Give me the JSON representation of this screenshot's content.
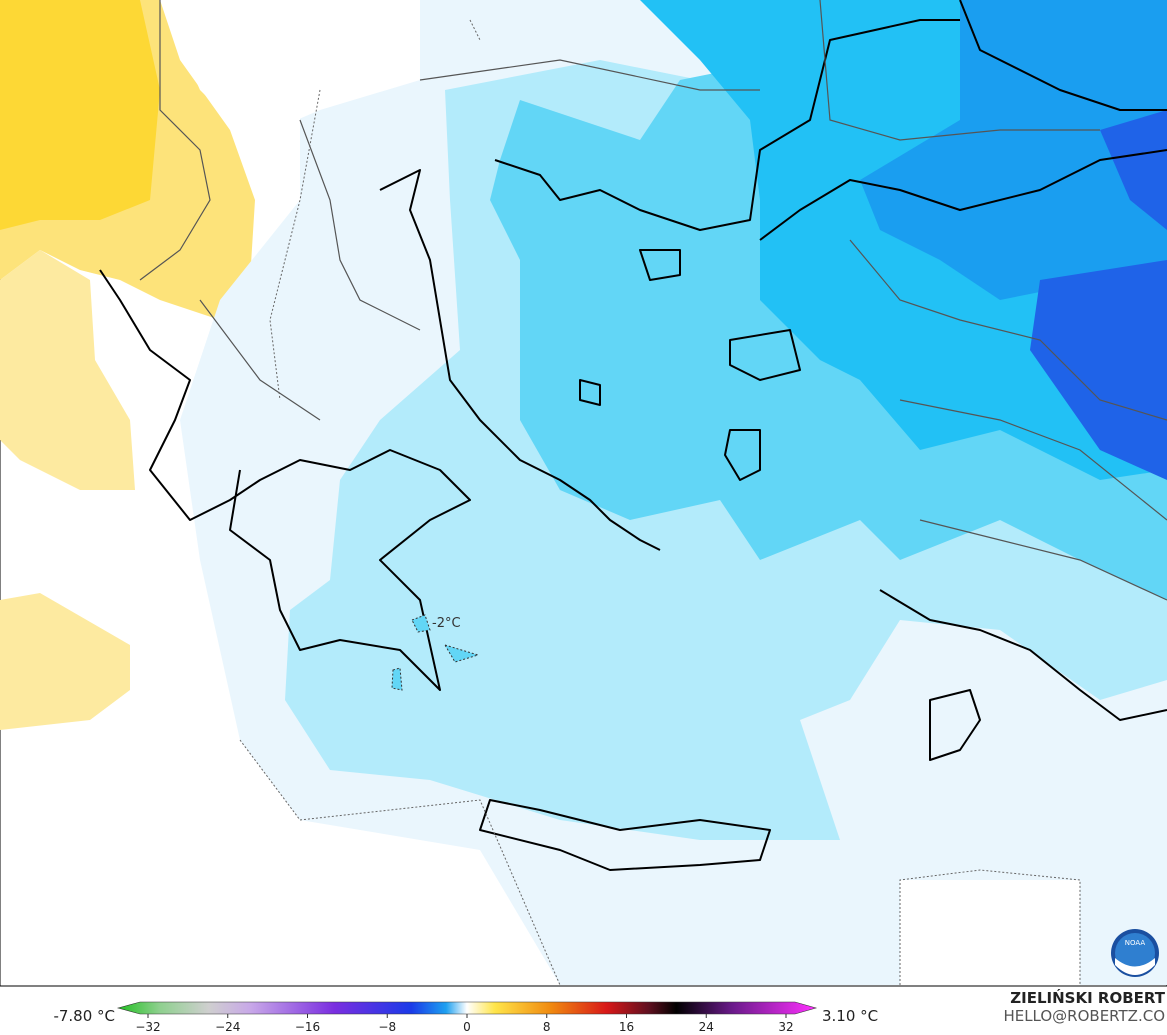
{
  "map": {
    "contour_label": "-2°C",
    "logo": "NOAA",
    "colorbar": {
      "min_label": "-7.80 °C",
      "max_label": "3.10 °C",
      "ticks": [
        {
          "value": -32,
          "label": "−32"
        },
        {
          "value": -24,
          "label": "−24"
        },
        {
          "value": -16,
          "label": "−16"
        },
        {
          "value": -8,
          "label": "−8"
        },
        0,
        8,
        16,
        24,
        32
      ]
    },
    "credit": {
      "author": "ZIELIŃSKI ROBERT",
      "email": "HELLO@ROBERTZ.CO"
    }
  }
}
